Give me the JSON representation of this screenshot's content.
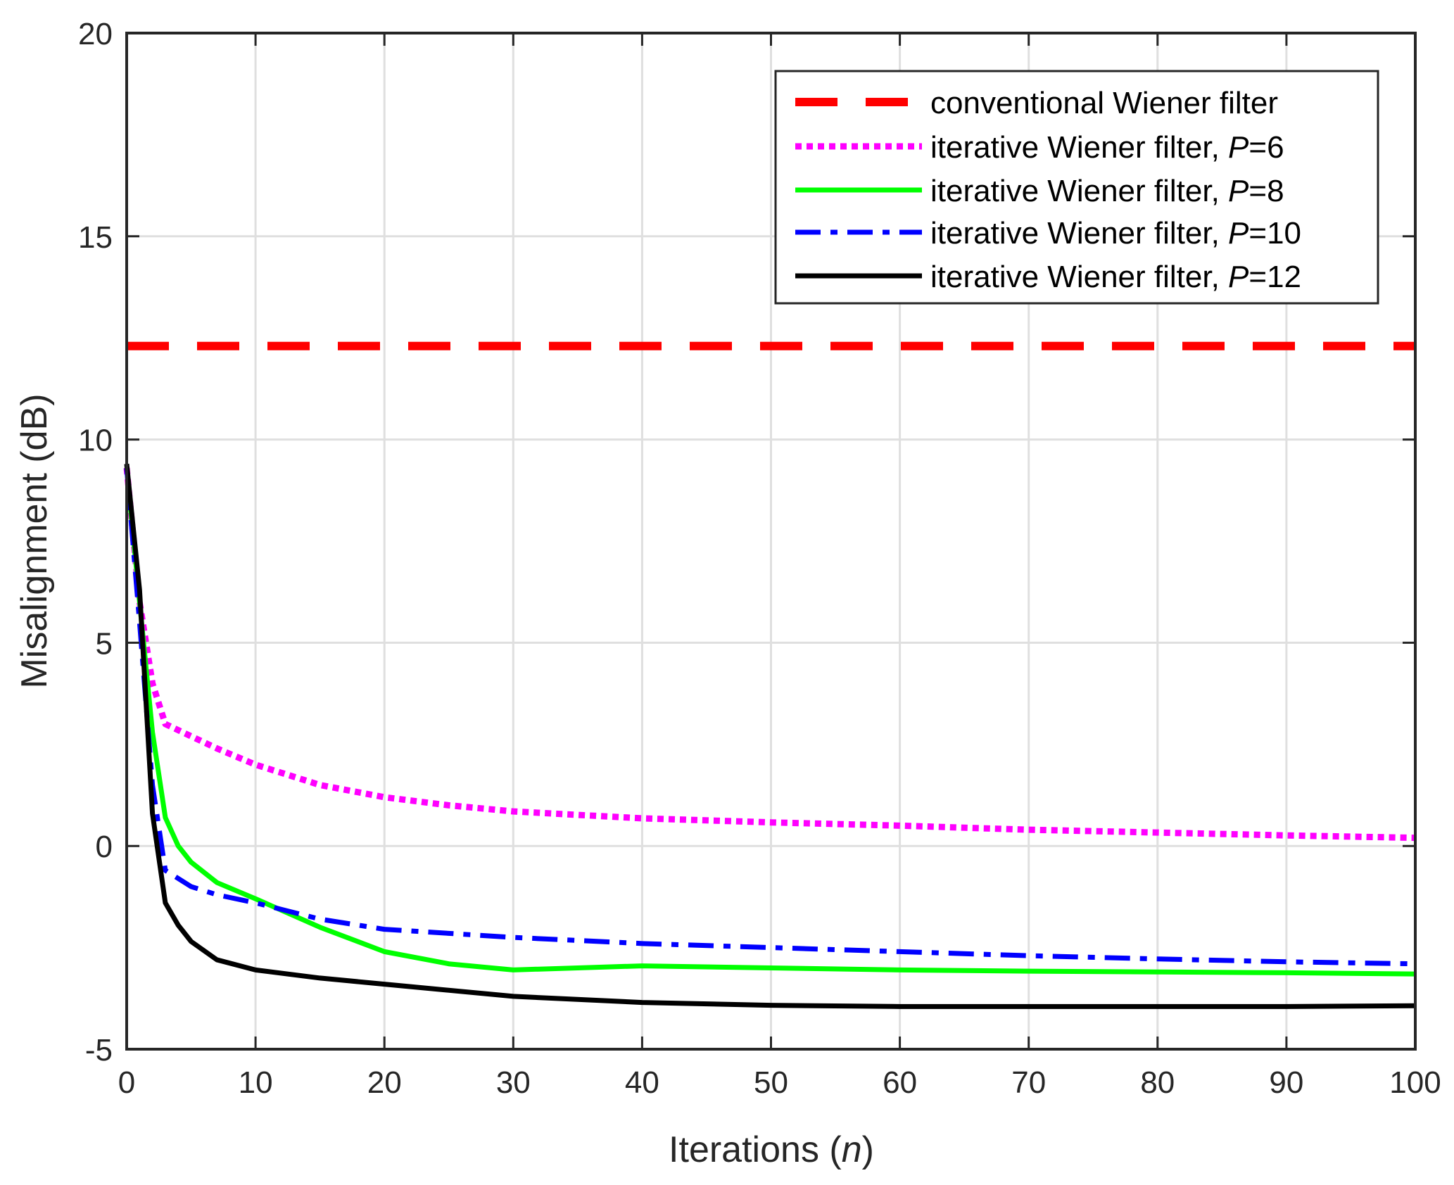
{
  "chart_data": {
    "type": "line",
    "title": "",
    "xlabel_text": "Iterations (",
    "xlabel_var": "n",
    "xlabel_close": ")",
    "ylabel": "Misalignment (dB)",
    "xlim": [
      0,
      100
    ],
    "ylim": [
      -5,
      20
    ],
    "xticks": [
      0,
      10,
      20,
      30,
      40,
      50,
      60,
      70,
      80,
      90,
      100
    ],
    "yticks": [
      -5,
      0,
      5,
      10,
      15,
      20
    ],
    "grid": true,
    "legend_position": "top-right",
    "series": [
      {
        "name": "conventional Wiener filter",
        "legend_prefix": "conventional Wiener filter",
        "legend_var": "",
        "legend_suffix": "",
        "color": "#ff0000",
        "style": "dashed",
        "x": [
          0,
          100
        ],
        "y": [
          12.3,
          12.3
        ]
      },
      {
        "name": "iterative Wiener filter, P=6",
        "legend_prefix": "iterative Wiener filter, ",
        "legend_var": "P",
        "legend_suffix": "=6",
        "color": "#ff00ff",
        "style": "dotted",
        "x": [
          0,
          1,
          2,
          3,
          5,
          7,
          10,
          15,
          20,
          25,
          30,
          40,
          50,
          60,
          70,
          80,
          90,
          100
        ],
        "y": [
          9.3,
          6.0,
          4.0,
          3.0,
          2.7,
          2.4,
          2.0,
          1.5,
          1.2,
          1.0,
          0.85,
          0.68,
          0.58,
          0.5,
          0.4,
          0.33,
          0.26,
          0.2
        ]
      },
      {
        "name": "iterative Wiener filter, P=8",
        "legend_prefix": "iterative Wiener filter, ",
        "legend_var": "P",
        "legend_suffix": "=8",
        "color": "#00ff00",
        "style": "solid",
        "x": [
          0,
          1,
          2,
          3,
          4,
          5,
          7,
          10,
          15,
          20,
          25,
          30,
          35,
          40,
          50,
          60,
          70,
          80,
          90,
          100
        ],
        "y": [
          9.3,
          6.0,
          2.8,
          0.7,
          0.0,
          -0.4,
          -0.9,
          -1.3,
          -2.0,
          -2.6,
          -2.9,
          -3.05,
          -3.0,
          -2.95,
          -3.0,
          -3.05,
          -3.08,
          -3.1,
          -3.12,
          -3.15
        ]
      },
      {
        "name": "iterative Wiener filter, P=10",
        "legend_prefix": "iterative Wiener filter, ",
        "legend_var": "P",
        "legend_suffix": "=10",
        "color": "#0000ff",
        "style": "dashdot",
        "x": [
          0,
          1,
          2,
          3,
          5,
          7,
          10,
          15,
          20,
          30,
          40,
          50,
          60,
          70,
          80,
          90,
          100
        ],
        "y": [
          9.3,
          5.5,
          1.5,
          -0.6,
          -1.0,
          -1.2,
          -1.4,
          -1.8,
          -2.05,
          -2.25,
          -2.4,
          -2.5,
          -2.6,
          -2.7,
          -2.78,
          -2.85,
          -2.9
        ]
      },
      {
        "name": "iterative Wiener filter, P=12",
        "legend_prefix": "iterative Wiener filter, ",
        "legend_var": "P",
        "legend_suffix": "=12",
        "color": "#000000",
        "style": "solid",
        "x": [
          0,
          1,
          2,
          3,
          4,
          5,
          7,
          10,
          15,
          20,
          30,
          40,
          50,
          60,
          70,
          80,
          90,
          100
        ],
        "y": [
          9.4,
          6.3,
          0.8,
          -1.4,
          -1.95,
          -2.35,
          -2.8,
          -3.05,
          -3.25,
          -3.4,
          -3.7,
          -3.85,
          -3.92,
          -3.95,
          -3.95,
          -3.95,
          -3.95,
          -3.93
        ]
      }
    ]
  }
}
